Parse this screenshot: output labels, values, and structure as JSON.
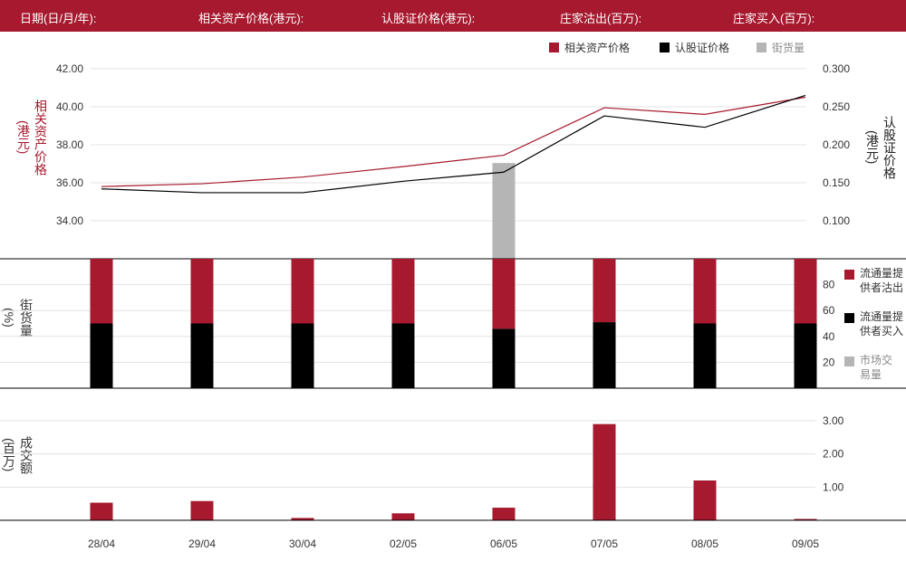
{
  "header": {
    "date_label": "日期(日/月/年):",
    "underlying_price_label": "相关资产价格(港元):",
    "warrant_price_label": "认股证价格(港元):",
    "issuer_sold_label": "庄家沽出(百万):",
    "issuer_bought_label": "庄家买入(百万):"
  },
  "legend_top": {
    "underlying": "相关资产价格",
    "warrant": "认股证价格",
    "outstanding": "街货量"
  },
  "axis_labels": {
    "left_top": "相关资产价格",
    "left_top_unit": "(港元)",
    "right_top": "认股证价格",
    "right_top_unit": "(港元)",
    "left_mid": "街货量",
    "left_mid_unit": "(%)",
    "left_bottom": "成交额",
    "left_bottom_unit": "(百万)"
  },
  "legend_mid": {
    "sold": "流通量提供者沽出",
    "bought": "流通量提供者买入",
    "market": "市场交易量"
  },
  "colors": {
    "brand": "#a6192e",
    "black": "#000000",
    "grey": "#b5b5b5"
  },
  "chart_data": [
    {
      "type": "line",
      "x": [
        "28/04",
        "29/04",
        "30/04",
        "02/05",
        "06/05",
        "07/05",
        "08/05",
        "09/05"
      ],
      "series": [
        {
          "name": "相关资产价格",
          "axis": "left",
          "values": [
            35.8,
            35.95,
            36.3,
            36.85,
            37.45,
            39.95,
            39.6,
            40.5
          ]
        },
        {
          "name": "认股证价格",
          "axis": "right",
          "values": [
            0.142,
            0.137,
            0.137,
            0.152,
            0.164,
            0.238,
            0.223,
            0.265
          ]
        },
        {
          "name": "街货量",
          "type": "bar",
          "axis": "right",
          "values": [
            null,
            null,
            null,
            null,
            0.176,
            null,
            null,
            null
          ]
        }
      ],
      "yleft_ticks": [
        "34.00",
        "36.00",
        "38.00",
        "40.00",
        "42.00"
      ],
      "yleft_range": [
        32.0,
        42.0
      ],
      "yright_ticks": [
        "0.100",
        "0.150",
        "0.200",
        "0.250",
        "0.300"
      ],
      "yright_range": [
        0.05,
        0.3
      ],
      "grid": true
    },
    {
      "type": "bar",
      "stacked": true,
      "categories": [
        "28/04",
        "29/04",
        "30/04",
        "02/05",
        "06/05",
        "07/05",
        "08/05",
        "09/05"
      ],
      "series": [
        {
          "name": "流通量提供者买入",
          "values": [
            50,
            50,
            50,
            50,
            46,
            51,
            50,
            50
          ]
        },
        {
          "name": "流通量提供者沽出",
          "values": [
            50,
            50,
            50,
            50,
            54,
            49,
            50,
            50
          ]
        }
      ],
      "y_ticks": [
        "20",
        "40",
        "60",
        "80"
      ],
      "ylim": [
        0,
        100
      ],
      "grid": true
    },
    {
      "type": "bar",
      "categories": [
        "28/04",
        "29/04",
        "30/04",
        "02/05",
        "06/05",
        "07/05",
        "08/05",
        "09/05"
      ],
      "values": [
        0.53,
        0.58,
        0.07,
        0.21,
        0.38,
        2.9,
        1.2,
        0.04
      ],
      "y_ticks": [
        "1.00",
        "2.00",
        "3.00"
      ],
      "ylim": [
        0,
        3.0
      ],
      "grid": true
    }
  ]
}
